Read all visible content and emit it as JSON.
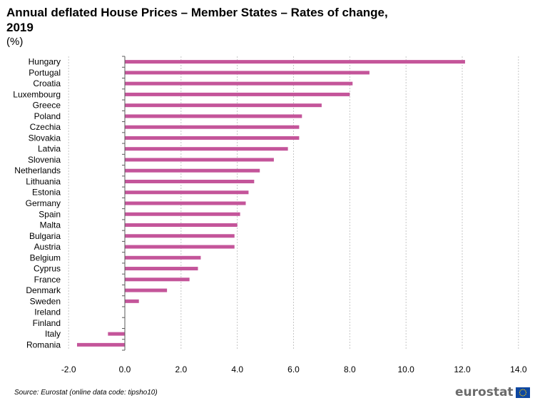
{
  "header": {
    "title": "Annual deflated House Prices – Member States  – Rates of change, 2019",
    "subtitle": "(%)"
  },
  "footer": {
    "source": "Source: Eurostat (online data code: tipsho10)",
    "logo_text": "eurostat"
  },
  "colors": {
    "bar": "#c4559a",
    "grid": "#b8b8b8",
    "axis": "#595959",
    "text": "#000000",
    "flag_blue": "#0e47a1",
    "flag_star": "#ffd200"
  },
  "chart_data": {
    "type": "bar",
    "orientation": "horizontal",
    "categories": [
      "Hungary",
      "Portugal",
      "Croatia",
      "Luxembourg",
      "Greece",
      "Poland",
      "Czechia",
      "Slovakia",
      "Latvia",
      "Slovenia",
      "Netherlands",
      "Lithuania",
      "Estonia",
      "Germany",
      "Spain",
      "Malta",
      "Bulgaria",
      "Austria",
      "Belgium",
      "Cyprus",
      "France",
      "Denmark",
      "Sweden",
      "Ireland",
      "Finland",
      "Italy",
      "Romania"
    ],
    "values": [
      12.1,
      8.7,
      8.1,
      8.0,
      7.0,
      6.3,
      6.2,
      6.2,
      5.8,
      5.3,
      4.8,
      4.6,
      4.4,
      4.3,
      4.1,
      4.0,
      3.9,
      3.9,
      2.7,
      2.6,
      2.3,
      1.5,
      0.5,
      null,
      null,
      -0.6,
      -1.7
    ],
    "xlim": [
      -2.0,
      14.0
    ],
    "xticks": [
      -2.0,
      0.0,
      2.0,
      4.0,
      6.0,
      8.0,
      10.0,
      12.0,
      14.0
    ],
    "xtick_labels": [
      "-2.0",
      "0.0",
      "2.0",
      "4.0",
      "6.0",
      "8.0",
      "10.0",
      "12.0",
      "14.0"
    ],
    "grid": "vertical dashed",
    "legend": "none"
  }
}
